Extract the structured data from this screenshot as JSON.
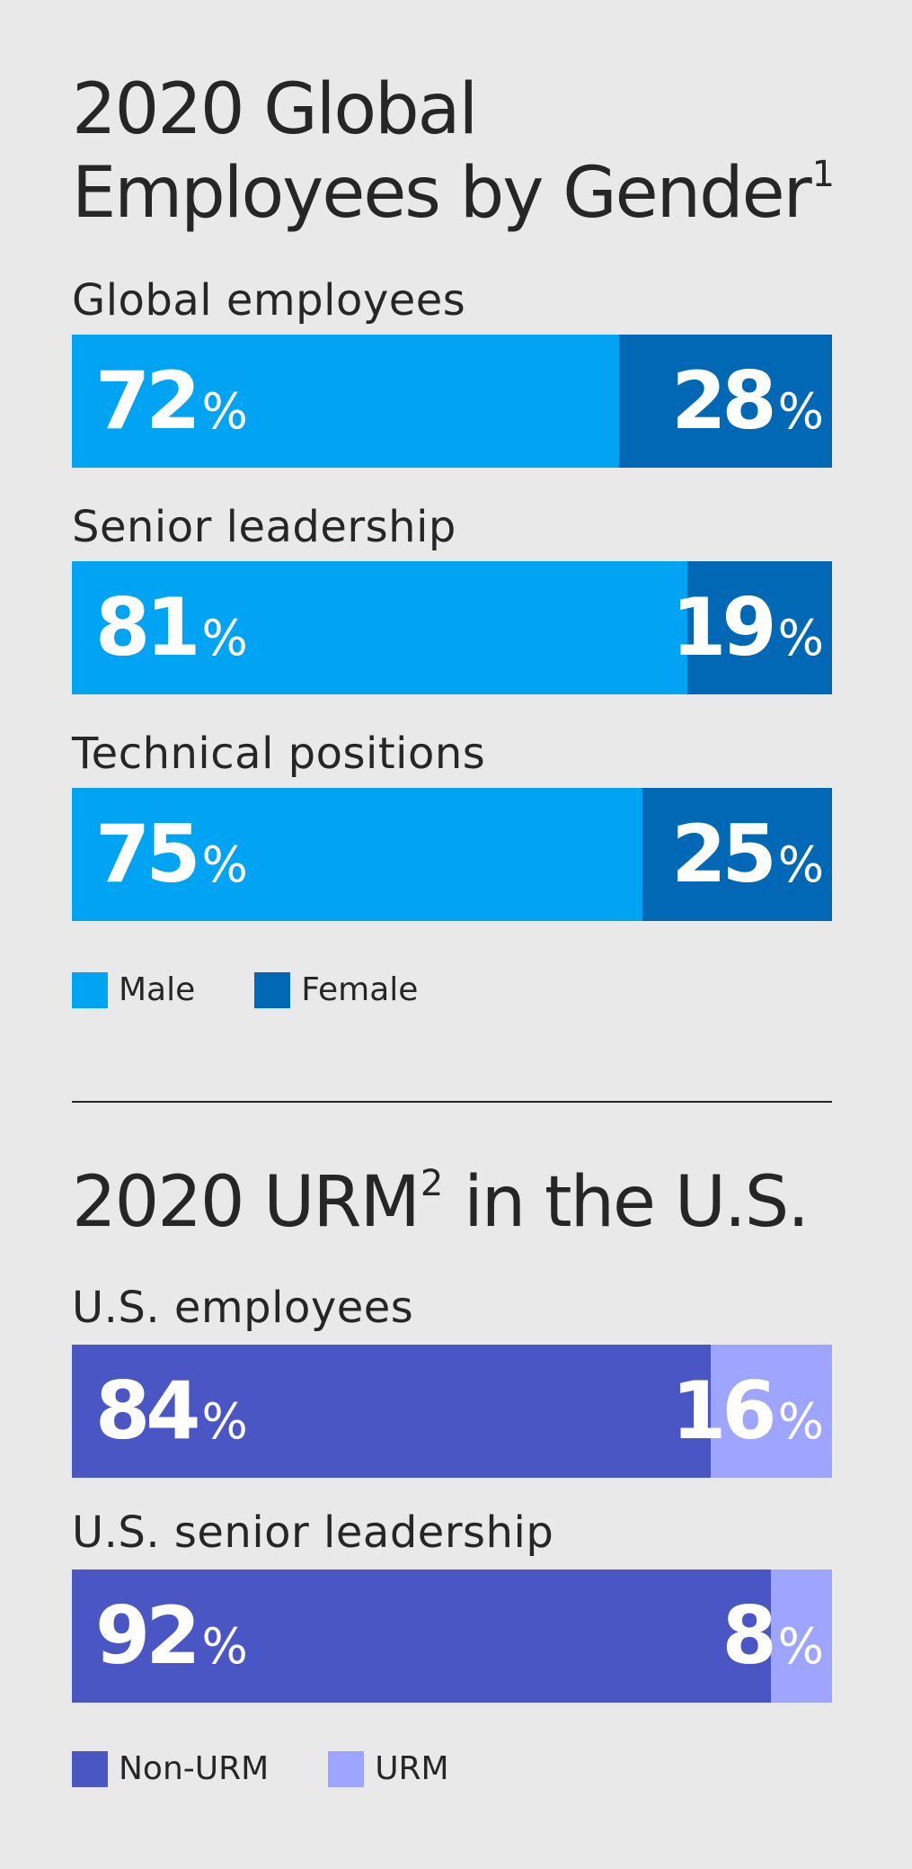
{
  "gender": {
    "title": "2020 Global",
    "title_line2": "Employees by Gender",
    "title_footnote": "1",
    "colors": {
      "male": "#01a4f3",
      "female": "#0068b5"
    },
    "legend": {
      "male": "Male",
      "female": "Female"
    }
  },
  "urm": {
    "title": "2020 URM",
    "title_footnote": "2",
    "title_suffix": " in the U.S.",
    "colors": {
      "non_urm": "#4b56c5",
      "urm": "#9ea5fe"
    },
    "legend": {
      "non_urm": "Non-URM",
      "urm": "URM"
    }
  },
  "percent_sign": "%",
  "chart_data": [
    {
      "type": "bar",
      "orientation": "horizontal-stacked-100",
      "title": "2020 Global Employees by Gender",
      "categories": [
        "Global employees",
        "Senior leadership",
        "Technical positions"
      ],
      "series": [
        {
          "name": "Male",
          "values": [
            72,
            81,
            75
          ],
          "color": "#01a4f3"
        },
        {
          "name": "Female",
          "values": [
            28,
            19,
            25
          ],
          "color": "#0068b5"
        }
      ],
      "legend": "bottom-left",
      "unit": "%"
    },
    {
      "type": "bar",
      "orientation": "horizontal-stacked-100",
      "title": "2020 URM in the U.S.",
      "categories": [
        "U.S. employees",
        "U.S. senior leadership"
      ],
      "series": [
        {
          "name": "Non-URM",
          "values": [
            84,
            92
          ],
          "color": "#4b56c5"
        },
        {
          "name": "URM",
          "values": [
            16,
            8
          ],
          "color": "#9ea5fe"
        }
      ],
      "legend": "bottom-left",
      "unit": "%"
    }
  ]
}
